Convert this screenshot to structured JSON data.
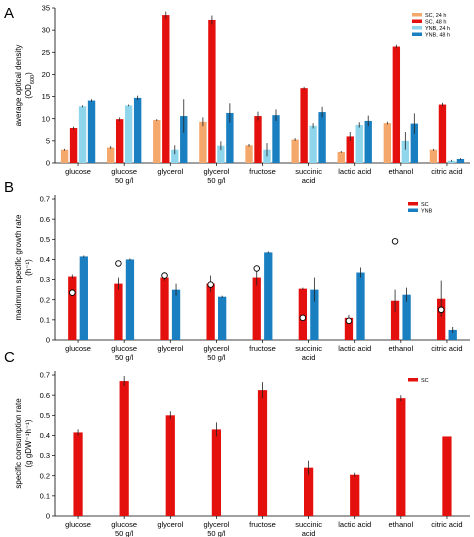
{
  "colors": {
    "sc_24h": "#f4a86c",
    "sc_48h": "#e4100e",
    "ynb_24h": "#8fd6ec",
    "ynb_48h": "#1a7fc0",
    "sc": "#e4100e",
    "ynb": "#1a7fc0"
  },
  "chart_data": [
    {
      "panel": "A",
      "type": "bar",
      "categories": [
        "glucose",
        "glucose\n50 g/l",
        "glycerol",
        "glycerol\n50 g/l",
        "fructose",
        "succinic\nacid",
        "lactic acid",
        "ethanol",
        "citric acid"
      ],
      "ylabel": "average optical density\n(OD600)",
      "ylim": [
        0,
        35
      ],
      "yticks": [
        0,
        5,
        10,
        15,
        20,
        25,
        30,
        35
      ],
      "legend_position": "top-right",
      "series": [
        {
          "name": "SC, 24 h",
          "color_key": "sc_24h",
          "values": [
            3.0,
            3.5,
            9.7,
            9.3,
            4.0,
            5.3,
            2.5,
            9.0,
            3.0
          ],
          "errors": [
            0.2,
            0.3,
            0.2,
            1.0,
            0.3,
            0.3,
            0.2,
            0.3,
            0.2
          ]
        },
        {
          "name": "SC, 48 h",
          "color_key": "sc_48h",
          "values": [
            7.9,
            9.9,
            33.4,
            32.3,
            10.6,
            16.9,
            6.0,
            26.3,
            13.2
          ],
          "errors": [
            0.3,
            0.4,
            0.8,
            1.0,
            1.0,
            0.3,
            1.0,
            0.4,
            0.4
          ]
        },
        {
          "name": "YNB, 24 h",
          "color_key": "ynb_24h",
          "values": [
            12.8,
            13.0,
            3.0,
            3.9,
            3.0,
            8.4,
            8.6,
            5.0,
            0.5
          ],
          "errors": [
            0.2,
            0.2,
            1.0,
            1.0,
            1.5,
            0.6,
            0.6,
            2.0,
            0.2
          ]
        },
        {
          "name": "YNB, 48 h",
          "color_key": "ynb_48h",
          "values": [
            14.1,
            14.7,
            10.6,
            11.3,
            10.8,
            11.5,
            9.5,
            8.9,
            0.9
          ],
          "errors": [
            0.3,
            0.5,
            3.8,
            2.2,
            1.3,
            1.2,
            1.2,
            2.3,
            0.2
          ]
        }
      ]
    },
    {
      "panel": "B",
      "type": "bar",
      "categories": [
        "glucose",
        "glucose\n50 g/l",
        "glycerol",
        "glycerol\n50 g/l",
        "fructose",
        "succinic\nacid",
        "lactic acid",
        "ethanol",
        "citric acid"
      ],
      "ylabel": "maximum specific growth rate\n(h⁻¹)",
      "ylim": [
        0,
        0.72
      ],
      "yticks": [
        0,
        0.1,
        0.2,
        0.3,
        0.4,
        0.5,
        0.6,
        0.7
      ],
      "legend_position": "top-right",
      "series": [
        {
          "name": "SC",
          "color_key": "sc",
          "values": [
            0.315,
            0.28,
            0.31,
            0.28,
            0.31,
            0.255,
            0.11,
            0.195,
            0.205
          ],
          "errors": [
            0.01,
            0.03,
            0.015,
            0.04,
            0.04,
            0.005,
            0.015,
            0.055,
            0.09
          ]
        },
        {
          "name": "YNB",
          "color_key": "ynb",
          "values": [
            0.415,
            0.4,
            0.25,
            0.215,
            0.435,
            0.25,
            0.335,
            0.225,
            0.05
          ],
          "errors": [
            0.005,
            0.005,
            0.03,
            0.005,
            0.005,
            0.06,
            0.025,
            0.035,
            0.015
          ]
        }
      ],
      "markers": [
        0.235,
        0.38,
        0.32,
        0.275,
        0.355,
        0.11,
        0.095,
        0.49,
        0.15
      ]
    },
    {
      "panel": "C",
      "type": "bar",
      "categories": [
        "glucose",
        "glucose\n50 g/l",
        "glycerol",
        "glycerol\n50 g/l",
        "fructose",
        "succinic\nacid",
        "lactic acid",
        "ethanol",
        "citric acid"
      ],
      "ylabel": "specific consumption rate\n(g gDW⁻¹h⁻¹)",
      "ylim": [
        0,
        0.72
      ],
      "yticks": [
        0,
        0.1,
        0.2,
        0.3,
        0.4,
        0.5,
        0.6,
        0.7
      ],
      "legend_position": "top-right",
      "series": [
        {
          "name": "SC",
          "color_key": "sc",
          "values": [
            0.415,
            0.67,
            0.5,
            0.43,
            0.625,
            0.24,
            0.205,
            0.585,
            0.395
          ],
          "errors": [
            0.015,
            0.025,
            0.02,
            0.035,
            0.04,
            0.035,
            0.01,
            0.015,
            0.0
          ]
        }
      ]
    }
  ]
}
